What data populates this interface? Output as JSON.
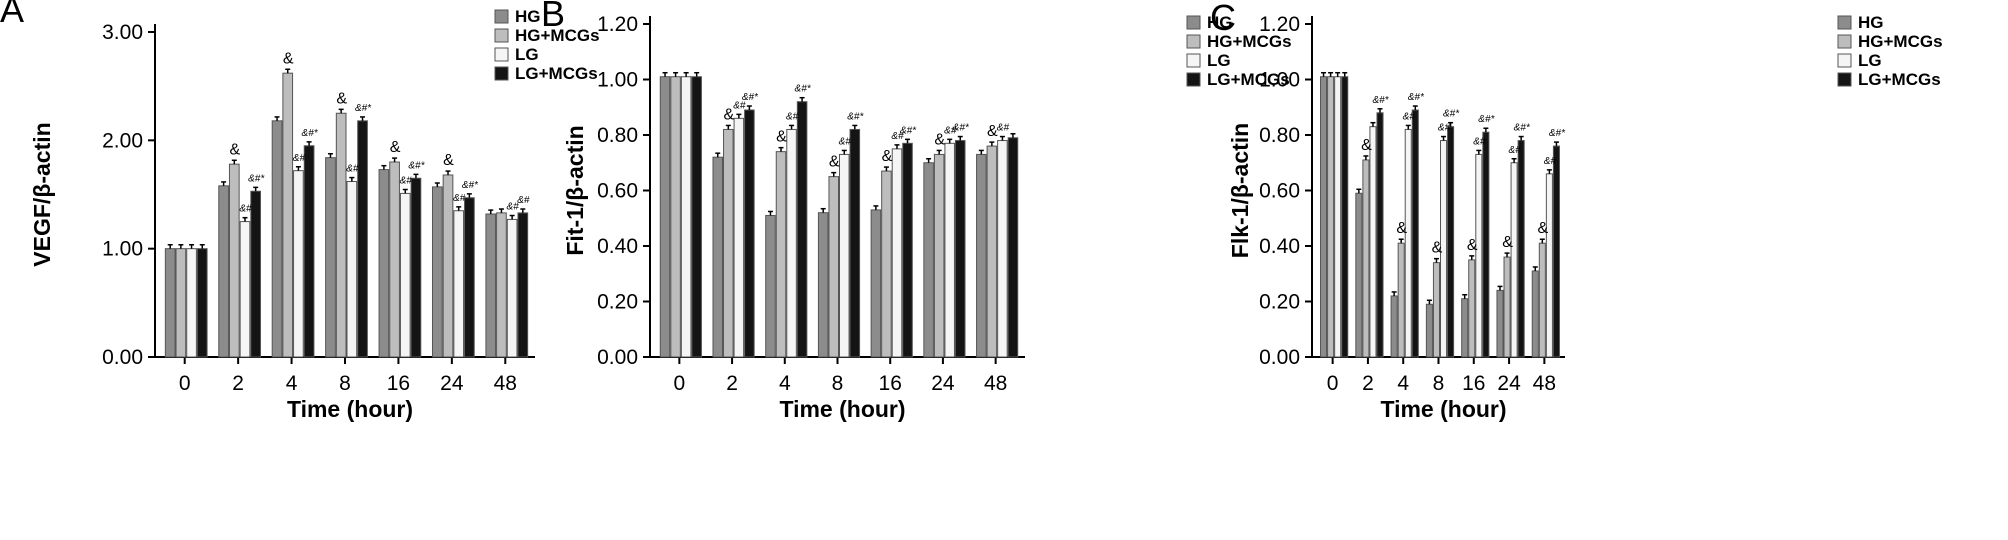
{
  "chart_data": [
    {
      "type": "bar",
      "panel_label": "A",
      "xlabel": "Time (hour)",
      "ylabel": "VEGF/β-actin",
      "categories": [
        "0",
        "2",
        "4",
        "8",
        "16",
        "24",
        "48"
      ],
      "ylim": [
        0,
        3.0
      ],
      "yticks": [
        "0.00",
        "1.00",
        "2.00",
        "3.00"
      ],
      "legend_position": "top-right",
      "series": [
        {
          "name": "HG",
          "values": [
            1.0,
            1.58,
            2.18,
            1.84,
            1.73,
            1.57,
            1.32
          ]
        },
        {
          "name": "HG+MCGs",
          "values": [
            1.0,
            1.78,
            2.62,
            2.25,
            1.8,
            1.68,
            1.33
          ]
        },
        {
          "name": "LG",
          "values": [
            1.0,
            1.25,
            1.72,
            1.62,
            1.51,
            1.35,
            1.27
          ]
        },
        {
          "name": "LG+MCGs",
          "values": [
            1.0,
            1.53,
            1.95,
            2.18,
            1.65,
            1.47,
            1.33
          ]
        }
      ],
      "annotations": [
        {
          "category": "2",
          "series": "HG+MCGs",
          "text": "&"
        },
        {
          "category": "2",
          "series": "LG",
          "text": "&#"
        },
        {
          "category": "2",
          "series": "LG+MCGs",
          "text": "&#*"
        },
        {
          "category": "4",
          "series": "HG+MCGs",
          "text": "&"
        },
        {
          "category": "4",
          "series": "LG",
          "text": "&#"
        },
        {
          "category": "4",
          "series": "LG+MCGs",
          "text": "&#*"
        },
        {
          "category": "8",
          "series": "HG+MCGs",
          "text": "&"
        },
        {
          "category": "8",
          "series": "LG",
          "text": "&#"
        },
        {
          "category": "8",
          "series": "LG+MCGs",
          "text": "&#*"
        },
        {
          "category": "16",
          "series": "HG+MCGs",
          "text": "&"
        },
        {
          "category": "16",
          "series": "LG",
          "text": "&#"
        },
        {
          "category": "16",
          "series": "LG+MCGs",
          "text": "&#*"
        },
        {
          "category": "24",
          "series": "HG+MCGs",
          "text": "&"
        },
        {
          "category": "24",
          "series": "LG",
          "text": "&#"
        },
        {
          "category": "24",
          "series": "LG+MCGs",
          "text": "&#*"
        },
        {
          "category": "48",
          "series": "LG",
          "text": "&#"
        },
        {
          "category": "48",
          "series": "LG+MCGs",
          "text": "&#"
        }
      ]
    },
    {
      "type": "bar",
      "panel_label": "B",
      "xlabel": "Time (hour)",
      "ylabel": "Fit-1/β-actin",
      "categories": [
        "0",
        "2",
        "4",
        "8",
        "16",
        "24",
        "48"
      ],
      "ylim": [
        0,
        1.2
      ],
      "yticks": [
        "0.00",
        "0.20",
        "0.40",
        "0.60",
        "0.80",
        "1.00",
        "1.20"
      ],
      "legend_position": "top-right",
      "series": [
        {
          "name": "HG",
          "values": [
            1.01,
            0.72,
            0.51,
            0.52,
            0.53,
            0.7,
            0.73
          ]
        },
        {
          "name": "HG+MCGs",
          "values": [
            1.01,
            0.82,
            0.74,
            0.65,
            0.67,
            0.73,
            0.76
          ]
        },
        {
          "name": "LG",
          "values": [
            1.01,
            0.86,
            0.82,
            0.73,
            0.75,
            0.77,
            0.78
          ]
        },
        {
          "name": "LG+MCGs",
          "values": [
            1.01,
            0.89,
            0.92,
            0.82,
            0.77,
            0.78,
            0.79
          ]
        }
      ],
      "annotations": [
        {
          "category": "2",
          "series": "HG+MCGs",
          "text": "&"
        },
        {
          "category": "2",
          "series": "LG",
          "text": "&#"
        },
        {
          "category": "2",
          "series": "LG+MCGs",
          "text": "&#*"
        },
        {
          "category": "4",
          "series": "HG+MCGs",
          "text": "&"
        },
        {
          "category": "4",
          "series": "LG",
          "text": "&#"
        },
        {
          "category": "4",
          "series": "LG+MCGs",
          "text": "&#*"
        },
        {
          "category": "8",
          "series": "HG+MCGs",
          "text": "&"
        },
        {
          "category": "8",
          "series": "LG",
          "text": "&#"
        },
        {
          "category": "8",
          "series": "LG+MCGs",
          "text": "&#*"
        },
        {
          "category": "16",
          "series": "HG+MCGs",
          "text": "&"
        },
        {
          "category": "16",
          "series": "LG",
          "text": "&#"
        },
        {
          "category": "16",
          "series": "LG+MCGs",
          "text": "&#*"
        },
        {
          "category": "24",
          "series": "HG+MCGs",
          "text": "&"
        },
        {
          "category": "24",
          "series": "LG",
          "text": "&#"
        },
        {
          "category": "24",
          "series": "LG+MCGs",
          "text": "&#*"
        },
        {
          "category": "48",
          "series": "HG+MCGs",
          "text": "&"
        },
        {
          "category": "48",
          "series": "LG",
          "text": "&#"
        }
      ]
    },
    {
      "type": "bar",
      "panel_label": "C",
      "xlabel": "Time (hour)",
      "ylabel": "Flk-1/β-actin",
      "categories": [
        "0",
        "2",
        "4",
        "8",
        "16",
        "24",
        "48"
      ],
      "ylim": [
        0,
        1.2
      ],
      "yticks": [
        "0.00",
        "0.20",
        "0.40",
        "0.60",
        "0.80",
        "1.00",
        "1.20"
      ],
      "legend_position": "top-right",
      "series": [
        {
          "name": "HG",
          "values": [
            1.01,
            0.59,
            0.22,
            0.19,
            0.21,
            0.24,
            0.31
          ]
        },
        {
          "name": "HG+MCGs",
          "values": [
            1.01,
            0.71,
            0.41,
            0.34,
            0.35,
            0.36,
            0.41
          ]
        },
        {
          "name": "LG",
          "values": [
            1.01,
            0.83,
            0.82,
            0.78,
            0.73,
            0.7,
            0.66
          ]
        },
        {
          "name": "LG+MCGs",
          "values": [
            1.01,
            0.88,
            0.89,
            0.83,
            0.81,
            0.78,
            0.76
          ]
        }
      ],
      "annotations": [
        {
          "category": "2",
          "series": "HG+MCGs",
          "text": "&"
        },
        {
          "category": "2",
          "series": "LG+MCGs",
          "text": "&#*"
        },
        {
          "category": "4",
          "series": "HG+MCGs",
          "text": "&"
        },
        {
          "category": "4",
          "series": "LG",
          "text": "&#"
        },
        {
          "category": "4",
          "series": "LG+MCGs",
          "text": "&#*"
        },
        {
          "category": "8",
          "series": "HG+MCGs",
          "text": "&"
        },
        {
          "category": "8",
          "series": "LG",
          "text": "&#"
        },
        {
          "category": "8",
          "series": "LG+MCGs",
          "text": "&#*"
        },
        {
          "category": "16",
          "series": "HG+MCGs",
          "text": "&"
        },
        {
          "category": "16",
          "series": "LG",
          "text": "&#"
        },
        {
          "category": "16",
          "series": "LG+MCGs",
          "text": "&#*"
        },
        {
          "category": "24",
          "series": "HG+MCGs",
          "text": "&"
        },
        {
          "category": "24",
          "series": "LG",
          "text": "&#"
        },
        {
          "category": "24",
          "series": "LG+MCGs",
          "text": "&#*"
        },
        {
          "category": "48",
          "series": "HG+MCGs",
          "text": "&"
        },
        {
          "category": "48",
          "series": "LG",
          "text": "&#"
        },
        {
          "category": "48",
          "series": "LG+MCGs",
          "text": "&#*"
        }
      ]
    }
  ],
  "style": {
    "series_colors": [
      "#8c8c8c",
      "#bdbdbd",
      "#f5f5f5",
      "#141414"
    ],
    "bar_stroke": "#555555",
    "axis_color": "#000000"
  }
}
